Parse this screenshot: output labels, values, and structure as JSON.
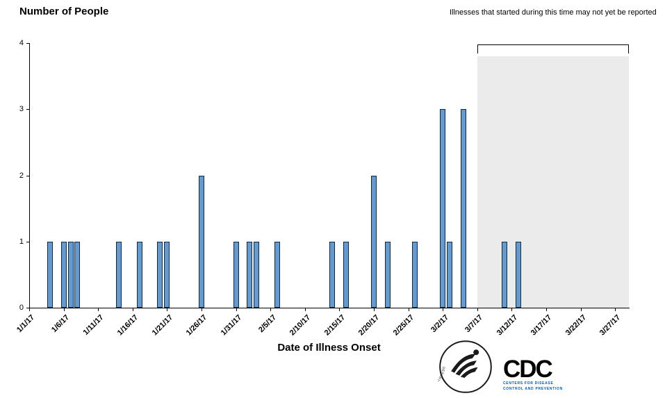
{
  "title": "Number of People",
  "x_axis_title": "Date of Illness Onset",
  "annotation": "Illnesses that started during this time may not yet be reported",
  "chart_data": {
    "type": "bar",
    "title": "Number of People",
    "xlabel": "Date of Illness Onset",
    "ylabel": "Number of People",
    "ylim": [
      0,
      4
    ],
    "y_ticks": [
      0,
      1,
      2,
      3,
      4
    ],
    "x_ticks": [
      "1/1/17",
      "1/6/17",
      "1/11/17",
      "1/16/17",
      "1/21/17",
      "1/26/17",
      "1/31/17",
      "2/5/17",
      "2/10/17",
      "2/15/17",
      "2/20/17",
      "2/25/17",
      "3/2/17",
      "3/7/17",
      "3/12/17",
      "3/17/17",
      "3/22/17",
      "3/27/17"
    ],
    "x_domain_days": 87,
    "bars": [
      {
        "date": "1/4/17",
        "count": 1
      },
      {
        "date": "1/6/17",
        "count": 1
      },
      {
        "date": "1/7/17",
        "count": 1
      },
      {
        "date": "1/8/17",
        "count": 1
      },
      {
        "date": "1/14/17",
        "count": 1
      },
      {
        "date": "1/17/17",
        "count": 1
      },
      {
        "date": "1/20/17",
        "count": 1
      },
      {
        "date": "1/21/17",
        "count": 1
      },
      {
        "date": "1/26/17",
        "count": 2
      },
      {
        "date": "1/31/17",
        "count": 1
      },
      {
        "date": "2/2/17",
        "count": 1
      },
      {
        "date": "2/3/17",
        "count": 1
      },
      {
        "date": "2/6/17",
        "count": 1
      },
      {
        "date": "2/14/17",
        "count": 1
      },
      {
        "date": "2/16/17",
        "count": 1
      },
      {
        "date": "2/20/17",
        "count": 2
      },
      {
        "date": "2/22/17",
        "count": 1
      },
      {
        "date": "2/26/17",
        "count": 1
      },
      {
        "date": "3/2/17",
        "count": 3
      },
      {
        "date": "3/3/17",
        "count": 1
      },
      {
        "date": "3/5/17",
        "count": 3
      },
      {
        "date": "3/11/17",
        "count": 1
      },
      {
        "date": "3/13/17",
        "count": 1
      }
    ],
    "unreported_region": {
      "start": "3/7/17",
      "top_value": 3.8,
      "label": "Illnesses that started during this time may not yet be reported",
      "fill": "#EBEBEB"
    },
    "bar_fill": "#6699CC",
    "bar_border": "#112A44",
    "grid": false,
    "legend": null
  },
  "logos": {
    "hhs_seal_ring_text": "DEPARTMENT OF HEALTH & HUMAN SERVICES • USA",
    "cdc": {
      "text": "CDC",
      "sub_line1": "CENTERS FOR DISEASE",
      "sub_line2": "CONTROL AND PREVENTION"
    }
  }
}
